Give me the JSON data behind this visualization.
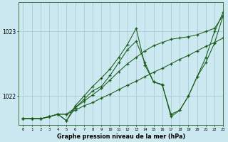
{
  "background_color": "#cce8f0",
  "grid_color": "#aaccd8",
  "line_color": "#1a5c1a",
  "title": "Graphe pression niveau de la mer (hPa)",
  "xlim": [
    -0.5,
    23
  ],
  "ylim": [
    1021.55,
    1023.45
  ],
  "yticks": [
    1022,
    1023
  ],
  "xticks": [
    0,
    1,
    2,
    3,
    4,
    5,
    6,
    7,
    8,
    9,
    10,
    11,
    12,
    13,
    14,
    15,
    16,
    17,
    18,
    19,
    20,
    21,
    22,
    23
  ],
  "series": [
    {
      "x": [
        0,
        1,
        2,
        3,
        4,
        5,
        6,
        7,
        8,
        9,
        10,
        11,
        12,
        13,
        14,
        15,
        16,
        17,
        18,
        19,
        20,
        21,
        22,
        23
      ],
      "y": [
        1021.65,
        1021.65,
        1021.65,
        1021.68,
        1021.72,
        1021.72,
        1021.78,
        1021.85,
        1021.9,
        1021.97,
        1022.03,
        1022.1,
        1022.17,
        1022.23,
        1022.3,
        1022.37,
        1022.43,
        1022.5,
        1022.57,
        1022.63,
        1022.7,
        1022.77,
        1022.83,
        1022.9
      ]
    },
    {
      "x": [
        0,
        1,
        2,
        3,
        4,
        5,
        6,
        7,
        8,
        9,
        10,
        11,
        12,
        13,
        14,
        15,
        16,
        17,
        18,
        19,
        20,
        21,
        22,
        23
      ],
      "y": [
        1021.65,
        1021.65,
        1021.65,
        1021.68,
        1021.72,
        1021.72,
        1021.82,
        1021.92,
        1022.02,
        1022.12,
        1022.25,
        1022.38,
        1022.5,
        1022.6,
        1022.7,
        1022.78,
        1022.83,
        1022.88,
        1022.9,
        1022.92,
        1022.95,
        1023.0,
        1023.05,
        1023.25
      ]
    },
    {
      "x": [
        0,
        1,
        2,
        3,
        4,
        5,
        6,
        7,
        8,
        9,
        10,
        11,
        12,
        13,
        14,
        15,
        16,
        17,
        18,
        19,
        20,
        21,
        22,
        23
      ],
      "y": [
        1021.65,
        1021.65,
        1021.65,
        1021.68,
        1021.72,
        1021.62,
        1021.82,
        1021.95,
        1022.08,
        1022.15,
        1022.32,
        1022.52,
        1022.72,
        1022.85,
        1022.52,
        1022.22,
        1022.17,
        1021.72,
        1021.78,
        1022.0,
        1022.3,
        1022.52,
        1022.82,
        1023.25
      ]
    },
    {
      "x": [
        0,
        1,
        2,
        3,
        4,
        5,
        6,
        7,
        8,
        9,
        10,
        11,
        12,
        13,
        14,
        15,
        16,
        17,
        18,
        19,
        20,
        21,
        22,
        23
      ],
      "y": [
        1021.65,
        1021.65,
        1021.65,
        1021.68,
        1021.72,
        1021.62,
        1021.85,
        1022.0,
        1022.15,
        1022.28,
        1022.42,
        1022.6,
        1022.8,
        1023.05,
        1022.48,
        1022.22,
        1022.18,
        1021.68,
        1021.78,
        1022.0,
        1022.3,
        1022.6,
        1023.0,
        1023.3
      ]
    }
  ]
}
